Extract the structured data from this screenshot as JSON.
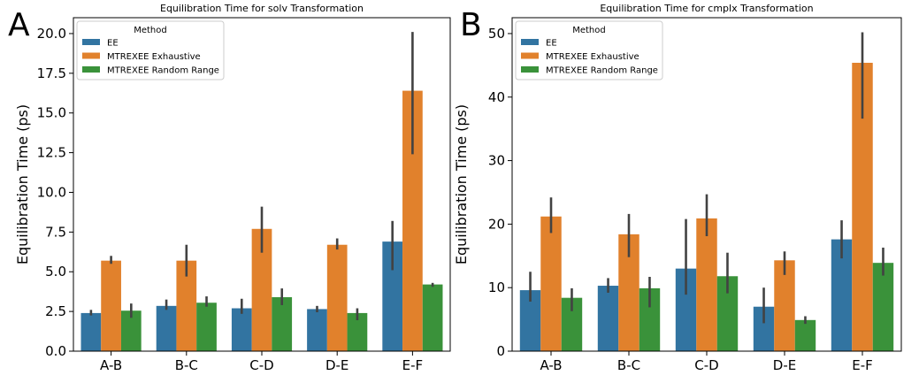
{
  "panel_labels": [
    "A",
    "B"
  ],
  "legend_title": "Method",
  "colors": {
    "EE": "#3274a1",
    "MTREXEE Exhaustive": "#e1812c",
    "MTREXEE Random Range": "#3a923a",
    "errorbar": "#424242"
  },
  "chart_data": [
    {
      "type": "bar",
      "title": "Equilibration Time for solv Transformation",
      "xlabel": "",
      "ylabel": "Equilibration Time (ps)",
      "categories": [
        "A-B",
        "B-C",
        "C-D",
        "D-E",
        "E-F"
      ],
      "ylim": [
        0,
        21
      ],
      "yticks": [
        0.0,
        2.5,
        5.0,
        7.5,
        10.0,
        12.5,
        15.0,
        17.5,
        20.0
      ],
      "ytick_labels": [
        "0.0",
        "2.5",
        "5.0",
        "7.5",
        "10.0",
        "12.5",
        "15.0",
        "17.5",
        "20.0"
      ],
      "legend_position": "top-left",
      "series": [
        {
          "name": "EE",
          "values": [
            2.4,
            2.85,
            2.7,
            2.65,
            6.9
          ],
          "err_low": [
            2.25,
            2.6,
            2.35,
            2.45,
            5.1
          ],
          "err_high": [
            2.6,
            3.25,
            3.3,
            2.85,
            8.2
          ]
        },
        {
          "name": "MTREXEE Exhaustive",
          "values": [
            5.7,
            5.7,
            7.7,
            6.7,
            16.4
          ],
          "err_low": [
            5.5,
            4.7,
            6.2,
            6.4,
            12.4
          ],
          "err_high": [
            6.0,
            6.7,
            9.1,
            7.1,
            20.1
          ]
        },
        {
          "name": "MTREXEE Random Range",
          "values": [
            2.55,
            3.05,
            3.4,
            2.4,
            4.2
          ],
          "err_low": [
            2.1,
            2.8,
            2.9,
            1.95,
            4.05
          ],
          "err_high": [
            3.0,
            3.45,
            3.95,
            2.7,
            4.3
          ]
        }
      ]
    },
    {
      "type": "bar",
      "title": "Equilibration Time for cmplx Transformation",
      "xlabel": "",
      "ylabel": "Equilibration Time (ps)",
      "categories": [
        "A-B",
        "B-C",
        "C-D",
        "D-E",
        "E-F"
      ],
      "ylim": [
        0,
        52.5
      ],
      "yticks": [
        0,
        10,
        20,
        30,
        40,
        50
      ],
      "ytick_labels": [
        "0",
        "10",
        "20",
        "30",
        "40",
        "50"
      ],
      "legend_position": "top-left",
      "series": [
        {
          "name": "EE",
          "values": [
            9.6,
            10.3,
            13.0,
            7.0,
            17.6
          ],
          "err_low": [
            7.8,
            9.2,
            8.9,
            4.4,
            14.6
          ],
          "err_high": [
            12.5,
            11.5,
            20.8,
            10.0,
            20.6
          ]
        },
        {
          "name": "MTREXEE Exhaustive",
          "values": [
            21.2,
            18.4,
            20.9,
            14.3,
            45.4
          ],
          "err_low": [
            18.6,
            14.8,
            18.1,
            12.0,
            36.6
          ],
          "err_high": [
            24.2,
            21.6,
            24.7,
            15.7,
            50.2
          ]
        },
        {
          "name": "MTREXEE Random Range",
          "values": [
            8.4,
            9.9,
            11.8,
            4.9,
            13.9
          ],
          "err_low": [
            6.3,
            6.9,
            9.1,
            4.3,
            11.9
          ],
          "err_high": [
            9.9,
            11.7,
            15.5,
            5.5,
            16.3
          ]
        }
      ]
    }
  ]
}
